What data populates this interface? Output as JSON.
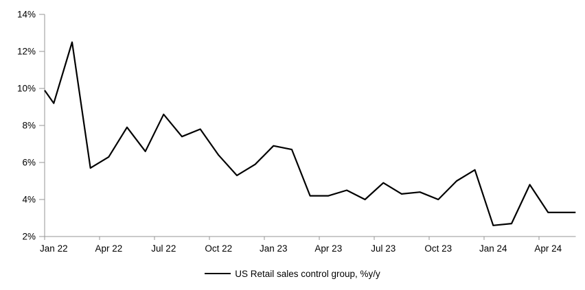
{
  "chart_data": {
    "type": "line",
    "title": "",
    "legend": {
      "label": "US Retail sales control group, %y/y",
      "position": "bottom-center",
      "marker": "line"
    },
    "series": [
      {
        "name": "US Retail sales control group, %y/y",
        "color": "#000000",
        "categories": [
          "Jan 22",
          "Feb 22",
          "Mar 22",
          "Apr 22",
          "May 22",
          "Jun 22",
          "Jul 22",
          "Aug 22",
          "Sep 22",
          "Oct 22",
          "Nov 22",
          "Dec 22",
          "Jan 23",
          "Feb 23",
          "Mar 23",
          "Apr 23",
          "May 23",
          "Jun 23",
          "Jul 23",
          "Aug 23",
          "Sep 23",
          "Oct 23",
          "Nov 23",
          "Dec 23",
          "Jan 24",
          "Feb 24",
          "Mar 24",
          "Apr 24",
          "May 24"
        ],
        "values": [
          9.2,
          12.5,
          5.7,
          6.3,
          7.9,
          6.6,
          8.6,
          7.4,
          7.8,
          6.4,
          5.3,
          5.9,
          6.9,
          6.7,
          4.2,
          4.2,
          4.5,
          4.0,
          4.9,
          4.3,
          4.4,
          4.0,
          5.0,
          5.6,
          2.6,
          2.7,
          4.8,
          3.3,
          3.3
        ],
        "left_edge_clip_value": 9.9,
        "right_edge_clip_value": 3.3
      }
    ],
    "x_axis": {
      "tick_labels": [
        "Jan 22",
        "Apr 22",
        "Jul 22",
        "Oct 22",
        "Jan 23",
        "Apr 23",
        "Jul 23",
        "Oct 23",
        "Jan 24",
        "Apr 24"
      ],
      "tick_every_months": 3,
      "labels_centered_between_ticks": true
    },
    "y_axis": {
      "tick_labels": [
        "14%",
        "12%",
        "10%",
        "8%",
        "6%",
        "4%",
        "2%"
      ],
      "min": 2,
      "max": 14,
      "step": 2,
      "unit": "%"
    },
    "ylim": [
      2,
      14
    ],
    "grid": false,
    "axis_color": "#969696",
    "line_width": 2.2,
    "background": "#ffffff"
  }
}
